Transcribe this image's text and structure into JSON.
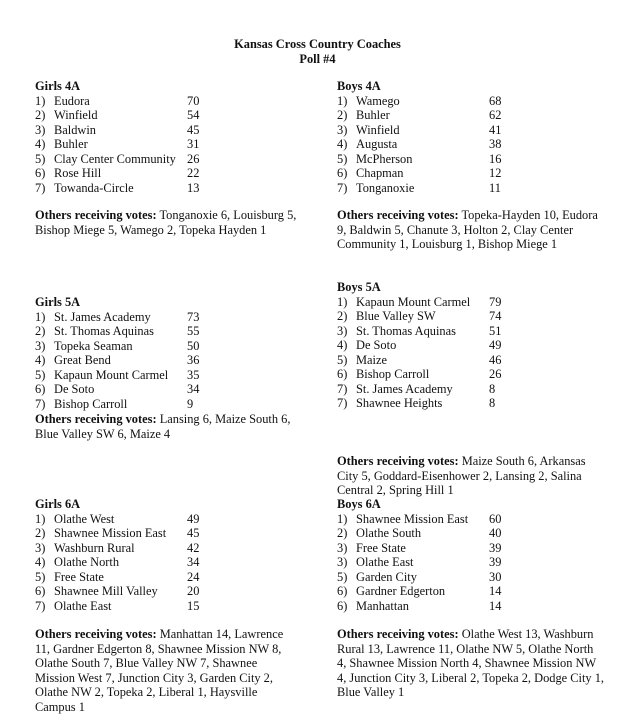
{
  "title": "Kansas Cross Country Coaches",
  "subtitle": "Poll #4",
  "others_label": "Others receiving votes:",
  "sections": [
    {
      "heading": "Girls 4A",
      "rows": [
        [
          "1)",
          "Eudora",
          "70"
        ],
        [
          "2)",
          "Winfield",
          "54"
        ],
        [
          "3)",
          "Baldwin",
          "45"
        ],
        [
          "4)",
          "Buhler",
          "31"
        ],
        [
          "5)",
          "Clay Center Community",
          "26"
        ],
        [
          "6)",
          "Rose Hill",
          "22"
        ],
        [
          "7)",
          "Towanda-Circle",
          "13"
        ]
      ],
      "others": "Tonganoxie 6, Louisburg 5, Bishop Miege 5, Wamego 2, Topeka Hayden 1"
    },
    {
      "heading": "Boys 4A",
      "rows": [
        [
          "1)",
          "Wamego",
          "68"
        ],
        [
          "2)",
          "Buhler",
          "62"
        ],
        [
          "3)",
          "Winfield",
          "41"
        ],
        [
          "4)",
          "Augusta",
          "38"
        ],
        [
          "5)",
          "McPherson",
          "16"
        ],
        [
          "6)",
          "Chapman",
          "12"
        ],
        [
          "7)",
          "Tonganoxie",
          "11"
        ]
      ],
      "others": "Topeka-Hayden 10, Eudora 9, Baldwin 5, Chanute 3, Holton 2, Clay Center Community 1, Louisburg 1, Bishop Miege 1"
    },
    {
      "heading": "Girls 5A",
      "rows": [
        [
          "1)",
          "St. James Academy",
          "73"
        ],
        [
          "2)",
          "St. Thomas Aquinas",
          "55"
        ],
        [
          "3)",
          "Topeka Seaman",
          "50"
        ],
        [
          "4)",
          "Great Bend",
          "36"
        ],
        [
          "5)",
          "Kapaun Mount Carmel",
          "35"
        ],
        [
          "6)",
          "De Soto",
          "34"
        ],
        [
          "7)",
          "Bishop Carroll",
          "9"
        ]
      ],
      "others": "Lansing 6, Maize South 6, Blue Valley SW 6, Maize 4"
    },
    {
      "heading": "Boys 5A",
      "rows": [
        [
          "1)",
          "Kapaun Mount Carmel",
          "79"
        ],
        [
          "2)",
          "Blue Valley SW",
          "74"
        ],
        [
          "3)",
          "St. Thomas Aquinas",
          "51"
        ],
        [
          "4)",
          "De Soto",
          "49"
        ],
        [
          "5)",
          "Maize",
          "46"
        ],
        [
          "6)",
          "Bishop Carroll",
          "26"
        ],
        [
          "7)",
          "St. James Academy",
          "8"
        ],
        [
          "7)",
          "Shawnee Heights",
          "8"
        ]
      ],
      "others": "Maize South 6, Arkansas City 5, Goddard-Eisenhower 2, Lansing 2, Salina Central 2, Spring Hill 1"
    },
    {
      "heading": "Girls 6A",
      "rows": [
        [
          "1)",
          "Olathe West",
          "49"
        ],
        [
          "2)",
          "Shawnee Mission East",
          "45"
        ],
        [
          "3)",
          "Washburn Rural",
          "42"
        ],
        [
          "4)",
          "Olathe North",
          "34"
        ],
        [
          "5)",
          "Free State",
          "24"
        ],
        [
          "6)",
          "Shawnee Mill Valley",
          "20"
        ],
        [
          "7)",
          "Olathe East",
          "15"
        ]
      ],
      "others": "Manhattan 14, Lawrence 11, Gardner Edgerton 8, Shawnee Mission NW 8, Olathe South 7, Blue Valley NW 7, Shawnee Mission West 7, Junction City 3, Garden City 2, Olathe NW 2, Topeka 2, Liberal 1, Haysville Campus 1"
    },
    {
      "heading": "Boys 6A",
      "rows": [
        [
          "1)",
          "Shawnee Mission East",
          "60"
        ],
        [
          "2)",
          "Olathe South",
          "40"
        ],
        [
          "3)",
          "Free State",
          "39"
        ],
        [
          "3)",
          "Olathe East",
          "39"
        ],
        [
          "5)",
          "Garden City",
          "30"
        ],
        [
          "6)",
          "Gardner Edgerton",
          "14"
        ],
        [
          "6)",
          "Manhattan",
          "14"
        ]
      ],
      "others": "Olathe West 13, Washburn Rural 13, Lawrence 11, Olathe NW 5, Olathe North 4, Shawnee Mission North 4, Shawnee Mission NW 4, Junction City 3, Liberal 2, Topeka 2, Dodge City 1, Blue Valley 1"
    }
  ]
}
